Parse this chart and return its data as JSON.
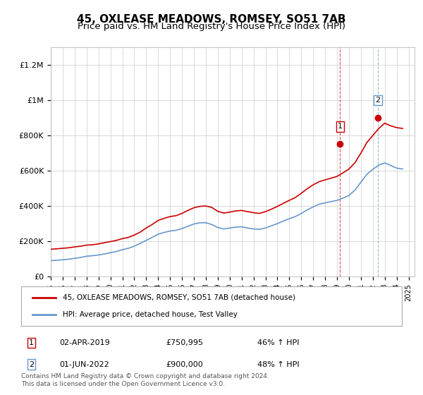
{
  "title": "45, OXLEASE MEADOWS, ROMSEY, SO51 7AB",
  "subtitle": "Price paid vs. HM Land Registry's House Price Index (HPI)",
  "title_fontsize": 11,
  "subtitle_fontsize": 9.5,
  "ylabel_ticks": [
    "£0",
    "£200K",
    "£400K",
    "£600K",
    "£800K",
    "£1M",
    "£1.2M"
  ],
  "ytick_values": [
    0,
    200000,
    400000,
    600000,
    800000,
    1000000,
    1200000
  ],
  "ylim": [
    0,
    1300000
  ],
  "xlim_start": 1995.0,
  "xlim_end": 2025.5,
  "legend_label_red": "45, OXLEASE MEADOWS, ROMSEY, SO51 7AB (detached house)",
  "legend_label_blue": "HPI: Average price, detached house, Test Valley",
  "point1_label": "1",
  "point1_date": "02-APR-2019",
  "point1_price": "£750,995",
  "point1_hpi": "46% ↑ HPI",
  "point1_x": 2019.25,
  "point1_y": 750995,
  "point2_label": "2",
  "point2_date": "01-JUN-2022",
  "point2_price": "£900,000",
  "point2_hpi": "48% ↑ HPI",
  "point2_x": 2022.42,
  "point2_y": 900000,
  "footer": "Contains HM Land Registry data © Crown copyright and database right 2024.\nThis data is licensed under the Open Government Licence v3.0.",
  "red_color": "#cc0000",
  "blue_color": "#6699cc",
  "point_color": "#cc0000",
  "vline_color": "#cc0000",
  "grid_color": "#cccccc",
  "background_color": "#ffffff",
  "red_hpi_series": {
    "years": [
      1995,
      1995.5,
      1996,
      1996.5,
      1997,
      1997.5,
      1998,
      1998.5,
      1999,
      1999.5,
      2000,
      2000.5,
      2001,
      2001.5,
      2002,
      2002.5,
      2003,
      2003.5,
      2004,
      2004.5,
      2005,
      2005.5,
      2006,
      2006.5,
      2007,
      2007.5,
      2008,
      2008.5,
      2009,
      2009.5,
      2010,
      2010.5,
      2011,
      2011.5,
      2012,
      2012.5,
      2013,
      2013.5,
      2014,
      2014.5,
      2015,
      2015.5,
      2016,
      2016.5,
      2017,
      2017.5,
      2018,
      2018.5,
      2019,
      2019.5,
      2020,
      2020.5,
      2021,
      2021.5,
      2022,
      2022.5,
      2023,
      2023.5,
      2024,
      2024.5
    ],
    "values": [
      155000,
      157000,
      160000,
      163000,
      168000,
      172000,
      178000,
      180000,
      185000,
      192000,
      198000,
      205000,
      215000,
      222000,
      235000,
      252000,
      275000,
      295000,
      318000,
      330000,
      340000,
      345000,
      358000,
      375000,
      390000,
      398000,
      400000,
      392000,
      370000,
      360000,
      365000,
      372000,
      375000,
      368000,
      362000,
      358000,
      368000,
      382000,
      398000,
      415000,
      432000,
      448000,
      472000,
      498000,
      520000,
      538000,
      548000,
      558000,
      568000,
      588000,
      610000,
      645000,
      700000,
      760000,
      800000,
      840000,
      870000,
      855000,
      845000,
      840000
    ]
  },
  "blue_hpi_series": {
    "years": [
      1995,
      1995.5,
      1996,
      1996.5,
      1997,
      1997.5,
      1998,
      1998.5,
      1999,
      1999.5,
      2000,
      2000.5,
      2001,
      2001.5,
      2002,
      2002.5,
      2003,
      2003.5,
      2004,
      2004.5,
      2005,
      2005.5,
      2006,
      2006.5,
      2007,
      2007.5,
      2008,
      2008.5,
      2009,
      2009.5,
      2010,
      2010.5,
      2011,
      2011.5,
      2012,
      2012.5,
      2013,
      2013.5,
      2014,
      2014.5,
      2015,
      2015.5,
      2016,
      2016.5,
      2017,
      2017.5,
      2018,
      2018.5,
      2019,
      2019.5,
      2020,
      2020.5,
      2021,
      2021.5,
      2022,
      2022.5,
      2023,
      2023.5,
      2024,
      2024.5
    ],
    "values": [
      90000,
      92000,
      95000,
      98000,
      103000,
      108000,
      115000,
      118000,
      122000,
      128000,
      135000,
      142000,
      152000,
      160000,
      172000,
      188000,
      205000,
      222000,
      240000,
      250000,
      258000,
      262000,
      272000,
      285000,
      298000,
      305000,
      305000,
      295000,
      278000,
      270000,
      275000,
      280000,
      282000,
      275000,
      270000,
      268000,
      275000,
      288000,
      300000,
      315000,
      328000,
      340000,
      358000,
      378000,
      395000,
      410000,
      418000,
      425000,
      432000,
      445000,
      460000,
      490000,
      535000,
      580000,
      608000,
      632000,
      645000,
      630000,
      615000,
      610000
    ]
  }
}
